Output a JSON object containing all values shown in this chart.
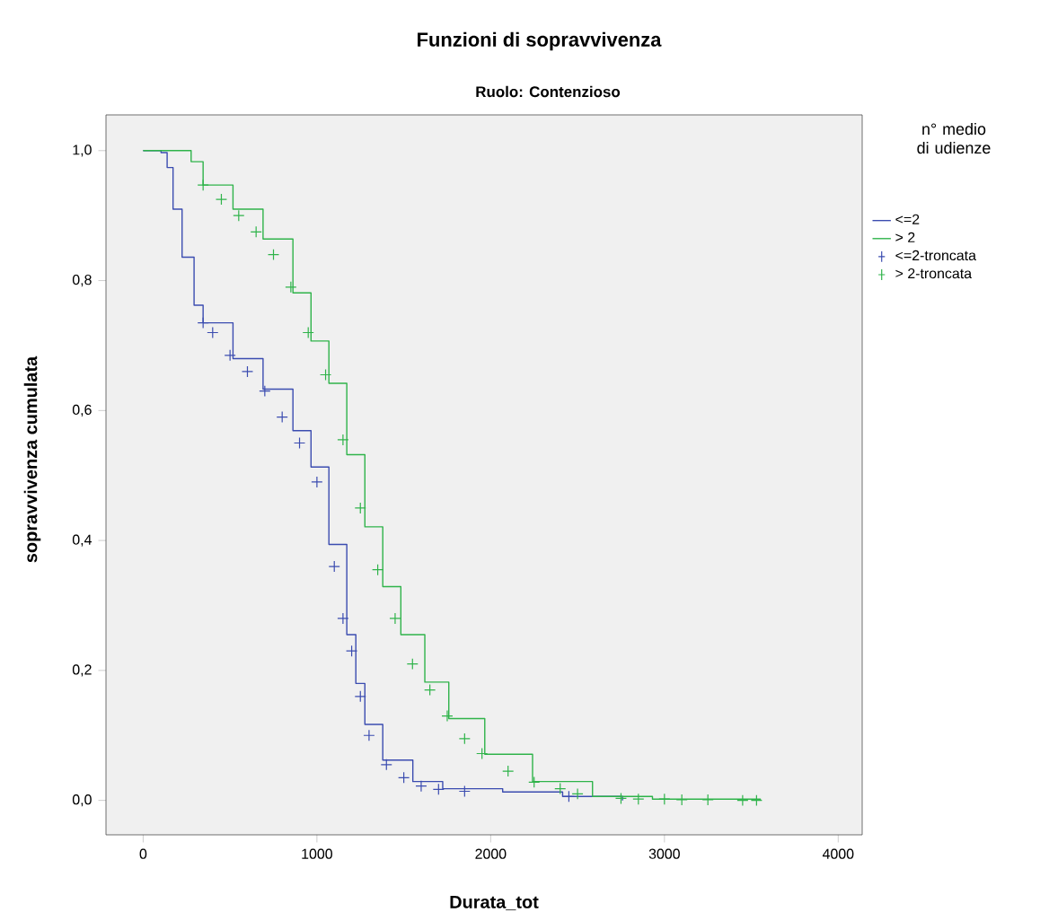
{
  "chart_data": {
    "type": "step",
    "title": "Funzioni di sopravvivenza",
    "subtitle": "Ruolo: Contenzioso",
    "xlabel": "Durata_tot",
    "ylabel": "sopravvivenza cumulata",
    "legend_title": "n° medio di udienze",
    "legend": "right",
    "xlim": [
      -214,
      4138
    ],
    "ylim": [
      -0.053,
      1.055
    ],
    "xticks": [
      0,
      1000,
      2000,
      3000,
      4000
    ],
    "yticks": [
      {
        "value": 0.0,
        "label": "0,0"
      },
      {
        "value": 0.2,
        "label": "0,2"
      },
      {
        "value": 0.4,
        "label": "0,4"
      },
      {
        "value": 0.6,
        "label": "0,6"
      },
      {
        "value": 0.8,
        "label": "0,8"
      },
      {
        "value": 1.0,
        "label": "1,0"
      }
    ],
    "series": [
      {
        "name": "<=2",
        "color": "#3b4cb0",
        "x": [
          0,
          103,
          138,
          172,
          224,
          293,
          345,
          517,
          690,
          862,
          966,
          1069,
          1172,
          1224,
          1276,
          1379,
          1552,
          1724,
          2069,
          2414,
          2759
        ],
        "values": [
          1.0,
          0.997,
          0.974,
          0.91,
          0.836,
          0.762,
          0.735,
          0.68,
          0.633,
          0.569,
          0.513,
          0.394,
          0.255,
          0.18,
          0.117,
          0.062,
          0.029,
          0.018,
          0.013,
          0.006,
          0.0
        ]
      },
      {
        "name": "> 2",
        "color": "#2fb34a",
        "x": [
          0,
          172,
          276,
          345,
          517,
          690,
          862,
          966,
          1069,
          1172,
          1276,
          1379,
          1483,
          1621,
          1759,
          1966,
          2241,
          2586,
          2931,
          3552
        ],
        "values": [
          1.0,
          1.0,
          0.983,
          0.947,
          0.91,
          0.864,
          0.781,
          0.707,
          0.642,
          0.532,
          0.421,
          0.329,
          0.255,
          0.182,
          0.126,
          0.071,
          0.029,
          0.006,
          0.002,
          0.0
        ]
      },
      {
        "name": "<=2-troncata",
        "type": "scatter",
        "marker": "cross",
        "color": "#3b4cb0",
        "x": [
          345,
          400,
          500,
          600,
          700,
          800,
          900,
          1000,
          1100,
          1150,
          1200,
          1250,
          1300,
          1400,
          1500,
          1600,
          1700,
          1850,
          2450
        ],
        "values": [
          0.735,
          0.72,
          0.685,
          0.66,
          0.63,
          0.59,
          0.55,
          0.49,
          0.36,
          0.28,
          0.23,
          0.16,
          0.1,
          0.055,
          0.035,
          0.022,
          0.017,
          0.014,
          0.006
        ]
      },
      {
        "name": "> 2-troncata",
        "type": "scatter",
        "marker": "cross",
        "color": "#2fb34a",
        "x": [
          345,
          450,
          550,
          650,
          750,
          850,
          950,
          1050,
          1150,
          1250,
          1350,
          1450,
          1550,
          1650,
          1750,
          1850,
          1950,
          2100,
          2250,
          2400,
          2500,
          2750,
          2850,
          3000,
          3100,
          3250,
          3450,
          3530
        ],
        "values": [
          0.947,
          0.925,
          0.9,
          0.875,
          0.84,
          0.79,
          0.72,
          0.655,
          0.555,
          0.45,
          0.355,
          0.28,
          0.21,
          0.17,
          0.13,
          0.095,
          0.072,
          0.045,
          0.028,
          0.018,
          0.01,
          0.003,
          0.002,
          0.002,
          0.001,
          0.001,
          0.0,
          0.0
        ]
      }
    ]
  }
}
